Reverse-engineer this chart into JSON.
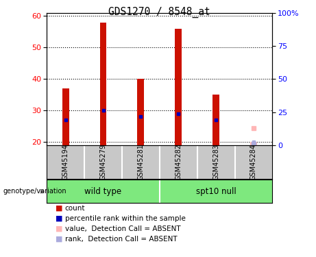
{
  "title": "GDS1270 / 8548_at",
  "samples": [
    "GSM45194",
    "GSM45279",
    "GSM45281",
    "GSM45282",
    "GSM45283",
    "GSM45284"
  ],
  "count_values": [
    37,
    58,
    40,
    56,
    35,
    20
  ],
  "percentile_values": [
    27,
    30,
    28,
    29,
    27,
    20
  ],
  "absent_flags": [
    false,
    false,
    false,
    false,
    false,
    true
  ],
  "absent_value": 24.5,
  "absent_rank": 19.5,
  "ylim_left": [
    19,
    61
  ],
  "ylim_right": [
    0,
    100
  ],
  "yticks_left": [
    20,
    30,
    40,
    50,
    60
  ],
  "yticks_right": [
    0,
    25,
    50,
    75,
    100
  ],
  "ytick_labels_right": [
    "0",
    "25",
    "50",
    "75",
    "100%"
  ],
  "groups": [
    {
      "label": "wild type",
      "indices": [
        0,
        1,
        2
      ]
    },
    {
      "label": "spt10 null",
      "indices": [
        3,
        4,
        5
      ]
    }
  ],
  "group_color": "#7EE87E",
  "bar_color": "#CC1100",
  "percentile_color": "#0000BB",
  "absent_value_color": "#FFB6B6",
  "absent_rank_color": "#AAAADD",
  "plot_bg_color": "#FFFFFF",
  "label_area_color": "#C8C8C8",
  "legend_entries": [
    {
      "label": "count",
      "color": "#CC1100"
    },
    {
      "label": "percentile rank within the sample",
      "color": "#0000BB"
    },
    {
      "label": "value,  Detection Call = ABSENT",
      "color": "#FFB6B6"
    },
    {
      "label": "rank,  Detection Call = ABSENT",
      "color": "#AAAADD"
    }
  ]
}
